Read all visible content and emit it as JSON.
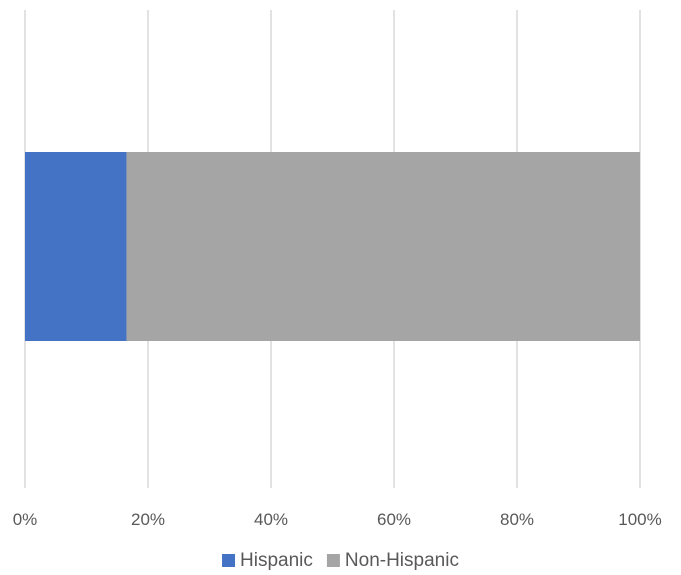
{
  "chart_data": {
    "type": "bar",
    "orientation": "horizontal",
    "stacked": "percent",
    "categories": [
      ""
    ],
    "series": [
      {
        "name": "Hispanic",
        "values": [
          16.5
        ],
        "color": "#4472C4"
      },
      {
        "name": "Non-Hispanic",
        "values": [
          83.5
        ],
        "color": "#A5A5A5"
      }
    ],
    "x_ticks": [
      "0%",
      "20%",
      "40%",
      "60%",
      "80%",
      "100%"
    ],
    "xlim": [
      0,
      100
    ],
    "grid": true,
    "grid_color": "#D9D9D9",
    "legend_position": "bottom",
    "title": "",
    "xlabel": "",
    "ylabel": ""
  }
}
